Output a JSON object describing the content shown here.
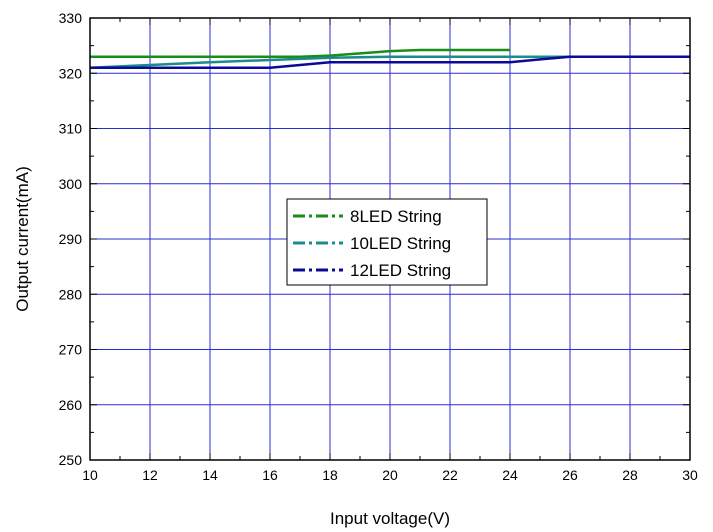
{
  "chart_data": {
    "type": "line",
    "xlabel": "Input voltage(V)",
    "ylabel": "Output current(mA)",
    "xlim": [
      10,
      30
    ],
    "ylim": [
      250,
      330
    ],
    "xticks": [
      10,
      12,
      14,
      16,
      18,
      20,
      22,
      24,
      26,
      28,
      30
    ],
    "yticks": [
      250,
      260,
      270,
      280,
      290,
      300,
      310,
      320,
      330
    ],
    "grid": true,
    "legend_position": "center",
    "series": [
      {
        "name": "8LED String",
        "color": "#1a8c1a",
        "x": [
          10,
          12,
          14,
          16,
          17,
          18,
          19,
          20,
          21,
          22,
          23,
          24
        ],
        "y": [
          323,
          323,
          323,
          323,
          323,
          323.2,
          323.6,
          324,
          324.2,
          324.2,
          324.2,
          324.2
        ]
      },
      {
        "name": "10LED String",
        "color": "#1a8c8c",
        "x": [
          10,
          12,
          14,
          16,
          18,
          20,
          22,
          24,
          26,
          28,
          30
        ],
        "y": [
          321,
          321.5,
          322,
          322.4,
          322.8,
          323,
          323,
          323,
          323,
          323,
          323
        ]
      },
      {
        "name": "12LED String",
        "color": "#0a0a96",
        "x": [
          10,
          12,
          14,
          16,
          17,
          18,
          20,
          22,
          24,
          25,
          26,
          28,
          30
        ],
        "y": [
          321,
          321,
          321,
          321,
          321.5,
          322,
          322,
          322,
          322,
          322.5,
          323,
          323,
          323
        ]
      }
    ]
  }
}
